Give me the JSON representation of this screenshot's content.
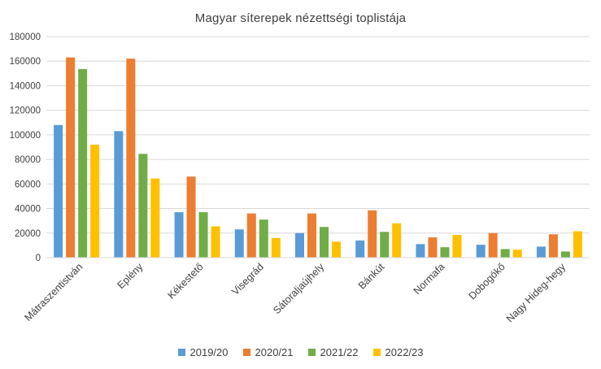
{
  "chart_data": {
    "type": "bar",
    "title": "Magyar síterepek nézettségi toplistája",
    "xlabel": "",
    "ylabel": "",
    "ylim": [
      0,
      180000
    ],
    "yticks": [
      "0",
      "20000",
      "40000",
      "60000",
      "80000",
      "100000",
      "120000",
      "140000",
      "160000",
      "180000"
    ],
    "grid": true,
    "legend_position": "bottom",
    "categories": [
      "Mátraszentistván",
      "Eplény",
      "Kékestető",
      "Visegrád",
      "Sátoraljaújhely",
      "Bánkút",
      "Normafa",
      "Dobogókő",
      "Nagy Hideg-hegy"
    ],
    "series": [
      {
        "name": "2019/20",
        "color": "#5B9BD5",
        "values": [
          108000,
          103000,
          37000,
          23000,
          20000,
          14000,
          11000,
          10500,
          9000
        ]
      },
      {
        "name": "2020/21",
        "color": "#ED7D31",
        "values": [
          163000,
          162000,
          66000,
          36000,
          36000,
          38500,
          16500,
          20000,
          19000
        ]
      },
      {
        "name": "2021/22",
        "color": "#70AD47",
        "values": [
          153500,
          84500,
          37000,
          31000,
          25000,
          21000,
          8500,
          7000,
          5000
        ]
      },
      {
        "name": "2022/23",
        "color": "#FFC000",
        "values": [
          92000,
          64500,
          25500,
          16000,
          13000,
          28000,
          18500,
          6500,
          21500
        ]
      }
    ]
  }
}
